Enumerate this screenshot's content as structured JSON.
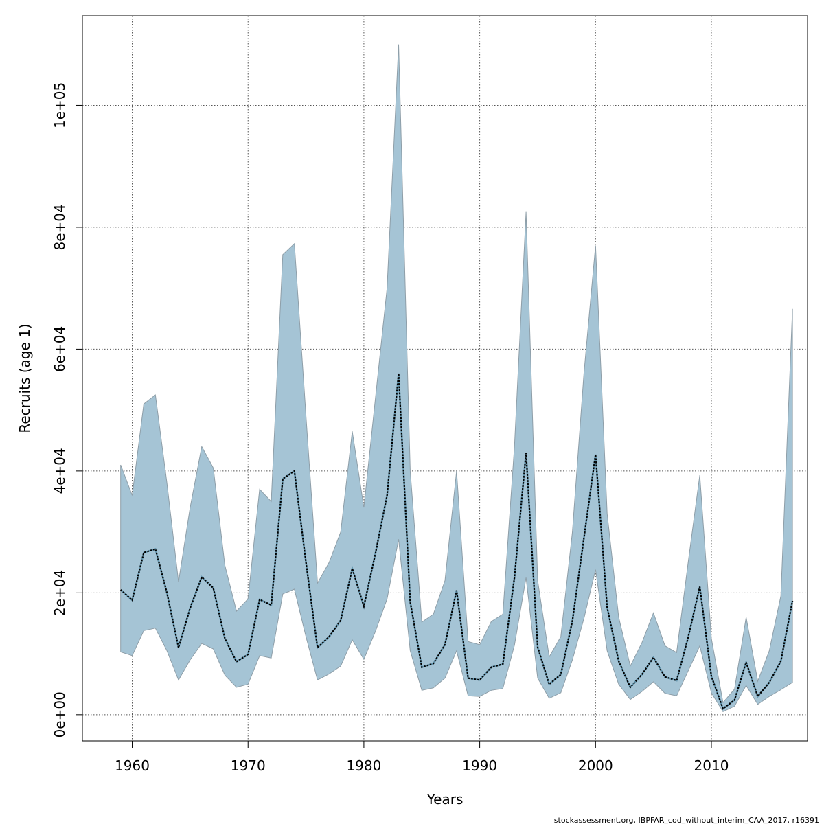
{
  "chart_data": {
    "type": "area",
    "title": "",
    "xlabel": "Years",
    "ylabel": "Recruits (age 1)",
    "xlim": [
      1955.7,
      2018.3
    ],
    "ylim": [
      -4300,
      114700
    ],
    "x_ticks": [
      1960,
      1970,
      1980,
      1990,
      2000,
      2010
    ],
    "x_tick_labels": [
      "1960",
      "1970",
      "1980",
      "1990",
      "2000",
      "2010"
    ],
    "y_ticks": [
      0,
      20000,
      40000,
      60000,
      80000,
      100000
    ],
    "y_tick_labels": [
      "0e+00",
      "2e+04",
      "4e+04",
      "6e+04",
      "8e+04",
      "1e+05"
    ],
    "grid": true,
    "legend": "none",
    "colors": {
      "band": "#a5c4d5",
      "band_edge": "#8e9ea8",
      "line": "#000000",
      "line_under": "#2e6f8e",
      "grid": "#555555"
    },
    "x": [
      1959,
      1960,
      1961,
      1962,
      1963,
      1964,
      1965,
      1966,
      1967,
      1968,
      1969,
      1970,
      1971,
      1972,
      1973,
      1974,
      1975,
      1976,
      1977,
      1978,
      1979,
      1980,
      1981,
      1982,
      1983,
      1984,
      1985,
      1986,
      1987,
      1988,
      1989,
      1990,
      1991,
      1992,
      1993,
      1994,
      1995,
      1996,
      1997,
      1998,
      1999,
      2000,
      2001,
      2002,
      2003,
      2004,
      2005,
      2006,
      2007,
      2008,
      2009,
      2010,
      2011,
      2012,
      2013,
      2014,
      2015,
      2016,
      2017
    ],
    "series": [
      {
        "name": "",
        "role": "upper",
        "values": [
          41000,
          36000,
          51000,
          52500,
          38000,
          21800,
          34000,
          44000,
          40500,
          24500,
          17000,
          19000,
          37000,
          35000,
          75500,
          77300,
          49000,
          21600,
          25000,
          30000,
          46500,
          34000,
          52000,
          70000,
          110000,
          40000,
          15200,
          16500,
          22000,
          40000,
          12000,
          11500,
          15300,
          16500,
          44000,
          82500,
          22000,
          9500,
          12800,
          30000,
          56000,
          77000,
          33000,
          16000,
          8000,
          11800,
          16700,
          11300,
          10200,
          25000,
          39300,
          12500,
          2000,
          4200,
          16000,
          5500,
          10500,
          19500,
          66600
        ]
      },
      {
        "name": "",
        "role": "median",
        "values": [
          20500,
          18800,
          26600,
          27200,
          20000,
          11000,
          17500,
          22600,
          20800,
          12500,
          8700,
          9900,
          18900,
          18000,
          38700,
          40000,
          25000,
          11000,
          12800,
          15500,
          24000,
          17800,
          26500,
          36000,
          56000,
          18500,
          7800,
          8400,
          11500,
          20400,
          6000,
          5700,
          7800,
          8300,
          22500,
          43000,
          11100,
          5000,
          6600,
          15400,
          29000,
          42700,
          17600,
          8800,
          4500,
          6600,
          9400,
          6200,
          5600,
          12700,
          21000,
          6300,
          1000,
          2400,
          8600,
          3000,
          5300,
          8800,
          18700
        ]
      },
      {
        "name": "",
        "role": "lower",
        "values": [
          10300,
          9700,
          13800,
          14200,
          10500,
          5700,
          9000,
          11700,
          10800,
          6500,
          4500,
          5000,
          9700,
          9300,
          19800,
          20600,
          12800,
          5700,
          6700,
          8000,
          12300,
          9100,
          13700,
          19000,
          28800,
          10500,
          4000,
          4400,
          6000,
          10500,
          3100,
          3000,
          4000,
          4300,
          11400,
          22500,
          6000,
          2700,
          3600,
          9000,
          15800,
          23800,
          10500,
          5000,
          2500,
          3800,
          5400,
          3500,
          3100,
          7200,
          11300,
          3600,
          500,
          1400,
          4800,
          1700,
          3000,
          4100,
          5300
        ]
      }
    ]
  },
  "footer": {
    "source": "stockassessment.org, IBPFAR_cod_without_interim_CAA_2017, r16391"
  }
}
